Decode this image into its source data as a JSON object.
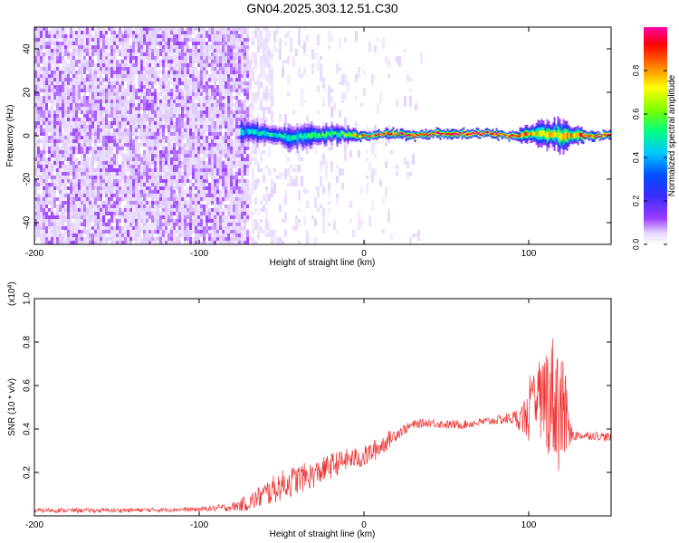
{
  "figure_title": "GN04.2025.303.12.51.C30",
  "chart_data": [
    {
      "type": "heatmap",
      "title": "GN04.2025.303.12.51.C30",
      "xlabel": "Height of straight line (km)",
      "ylabel": "Frequency (Hz)",
      "xlim": [
        -200,
        150
      ],
      "ylim": [
        -50,
        50
      ],
      "x_ticks": [
        -200,
        -100,
        0,
        100
      ],
      "y_ticks": [
        -40,
        -20,
        0,
        20,
        40
      ],
      "colorbar": {
        "label": "Normalized spectral amplitude",
        "range": [
          0.0,
          1.0
        ],
        "ticks": [
          "0.0",
          "0.2",
          "0.4",
          "0.6",
          "0.8"
        ],
        "colormap": [
          "#ffffff",
          "#e0ccff",
          "#9a3dff",
          "#3b2bff",
          "#0050ff",
          "#00c8ff",
          "#00ff80",
          "#7fff00",
          "#ffff00",
          "#ff8000",
          "#ff0000",
          "#ff00aa"
        ]
      },
      "signal_trace": {
        "description_free": true,
        "x": [
          -75,
          -60,
          -45,
          -30,
          -15,
          0,
          15,
          30,
          45,
          60,
          75,
          90,
          105,
          120,
          135,
          150
        ],
        "freq_hz": [
          2,
          1,
          -1,
          0,
          1,
          0,
          1,
          0,
          1,
          1,
          1,
          0,
          1,
          0,
          0,
          0
        ],
        "amplitude": [
          0.45,
          0.5,
          0.5,
          0.55,
          0.6,
          0.85,
          0.9,
          0.9,
          0.95,
          0.95,
          0.95,
          0.9,
          0.7,
          0.75,
          0.9,
          0.95
        ],
        "width_hz": [
          6,
          5,
          6,
          5,
          4,
          2,
          2,
          2,
          2,
          2,
          2,
          2,
          5,
          7,
          2,
          2
        ]
      },
      "noise_extent_km": [
        -200,
        -70
      ],
      "noise_amplitude": 0.25
    },
    {
      "type": "line",
      "title": "",
      "xlabel": "Height of straight line (km)",
      "ylabel": "SNR (10 * v/v)",
      "scale_label": "(x10",
      "scale_exponent": "4",
      "line_color": "#ee3333",
      "xlim": [
        -200,
        150
      ],
      "ylim": [
        0,
        1.0
      ],
      "x_ticks": [
        -200,
        -100,
        0,
        100
      ],
      "y_ticks": [
        "0.2",
        "0.4",
        "0.6",
        "0.8",
        "1.0"
      ],
      "series": [
        {
          "name": "SNR",
          "x": [
            -200,
            -150,
            -100,
            -80,
            -70,
            -60,
            -50,
            -40,
            -30,
            -20,
            -10,
            0,
            10,
            20,
            30,
            40,
            50,
            60,
            70,
            80,
            90,
            95,
            100,
            105,
            110,
            115,
            120,
            125,
            130,
            140,
            150
          ],
          "y": [
            0.025,
            0.025,
            0.03,
            0.04,
            0.06,
            0.1,
            0.14,
            0.17,
            0.19,
            0.23,
            0.26,
            0.27,
            0.32,
            0.38,
            0.42,
            0.43,
            0.42,
            0.42,
            0.43,
            0.44,
            0.45,
            0.45,
            0.46,
            0.5,
            0.55,
            0.55,
            0.5,
            0.38,
            0.37,
            0.37,
            0.36
          ],
          "spread": [
            0.01,
            0.01,
            0.01,
            0.02,
            0.04,
            0.06,
            0.07,
            0.07,
            0.06,
            0.06,
            0.05,
            0.05,
            0.05,
            0.03,
            0.02,
            0.02,
            0.02,
            0.02,
            0.02,
            0.02,
            0.03,
            0.06,
            0.12,
            0.2,
            0.25,
            0.3,
            0.35,
            0.05,
            0.02,
            0.02,
            0.02
          ]
        }
      ]
    }
  ]
}
